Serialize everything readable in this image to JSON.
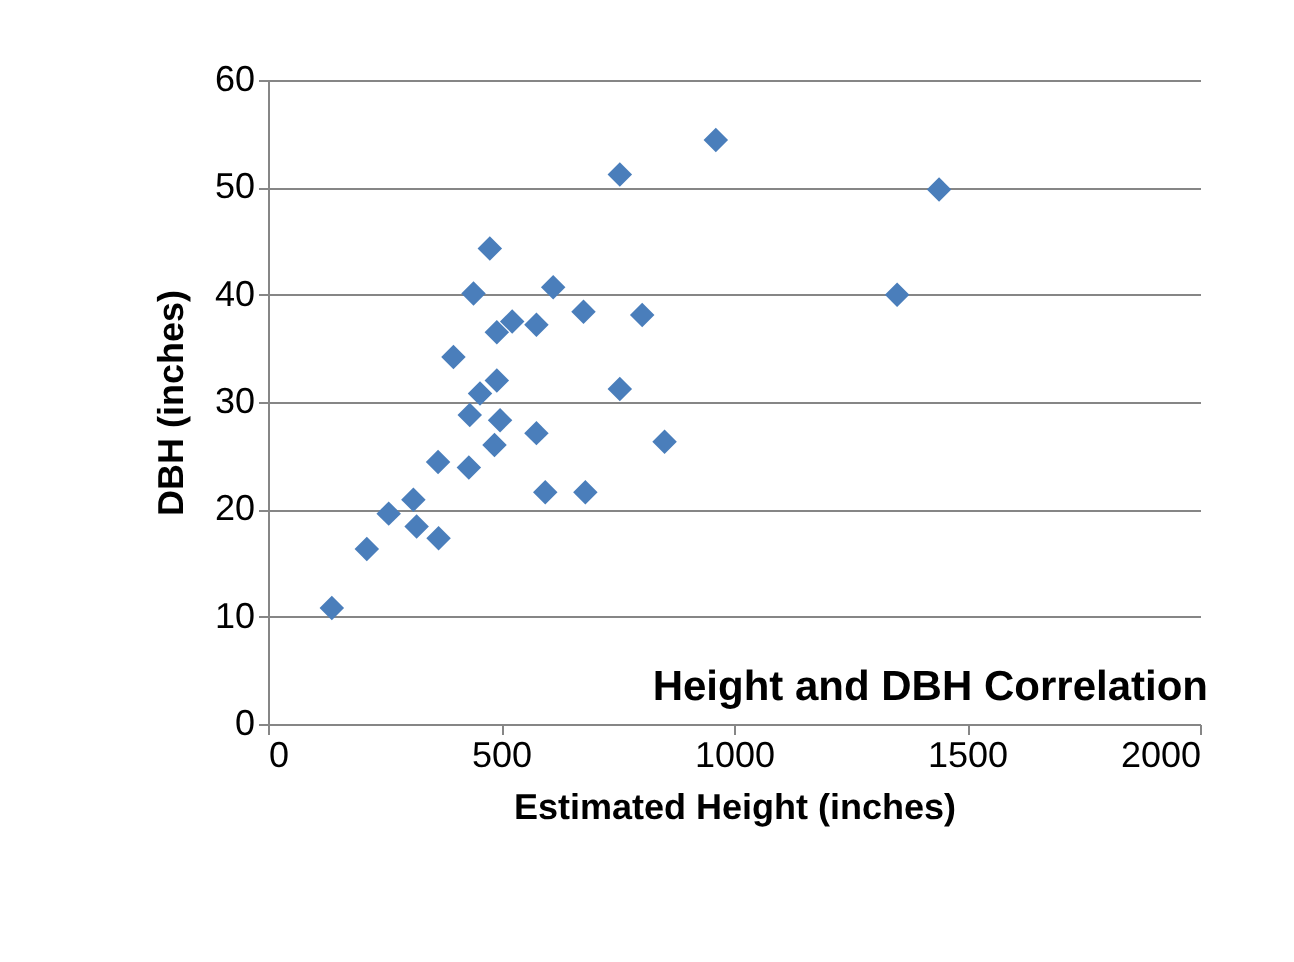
{
  "chart_data": {
    "type": "scatter",
    "title": "Height and DBH Correlation",
    "xlabel": "Estimated Height (inches)",
    "ylabel": "DBH (inches)",
    "x": [
      137,
      212,
      259,
      312,
      319,
      366,
      365,
      431,
      433,
      455,
      491,
      498,
      486,
      576,
      398,
      441,
      476,
      491,
      524,
      576,
      612,
      677,
      803,
      755,
      851,
      595,
      681,
      755,
      961,
      1350,
      1440
    ],
    "series": [
      {
        "color": "#4a7ebb",
        "values": [
          10.8,
          16.3,
          19.6,
          20.9,
          18.4,
          17.3,
          24.4,
          23.9,
          28.8,
          30.8,
          32.0,
          28.3,
          26.0,
          27.1,
          34.2,
          40.1,
          44.3,
          36.5,
          37.5,
          37.2,
          40.7,
          38.4,
          38.1,
          31.2,
          26.3,
          21.6,
          21.6,
          51.2,
          54.4,
          40.0,
          49.8
        ]
      }
    ],
    "xlim": [
      0,
      2000
    ],
    "xticks": [
      0,
      500,
      1000,
      1500,
      2000
    ],
    "ylim": [
      0,
      60
    ],
    "yticks": [
      0,
      10,
      20,
      30,
      40,
      50,
      60
    ],
    "grid": "y",
    "marker": "diamond"
  }
}
